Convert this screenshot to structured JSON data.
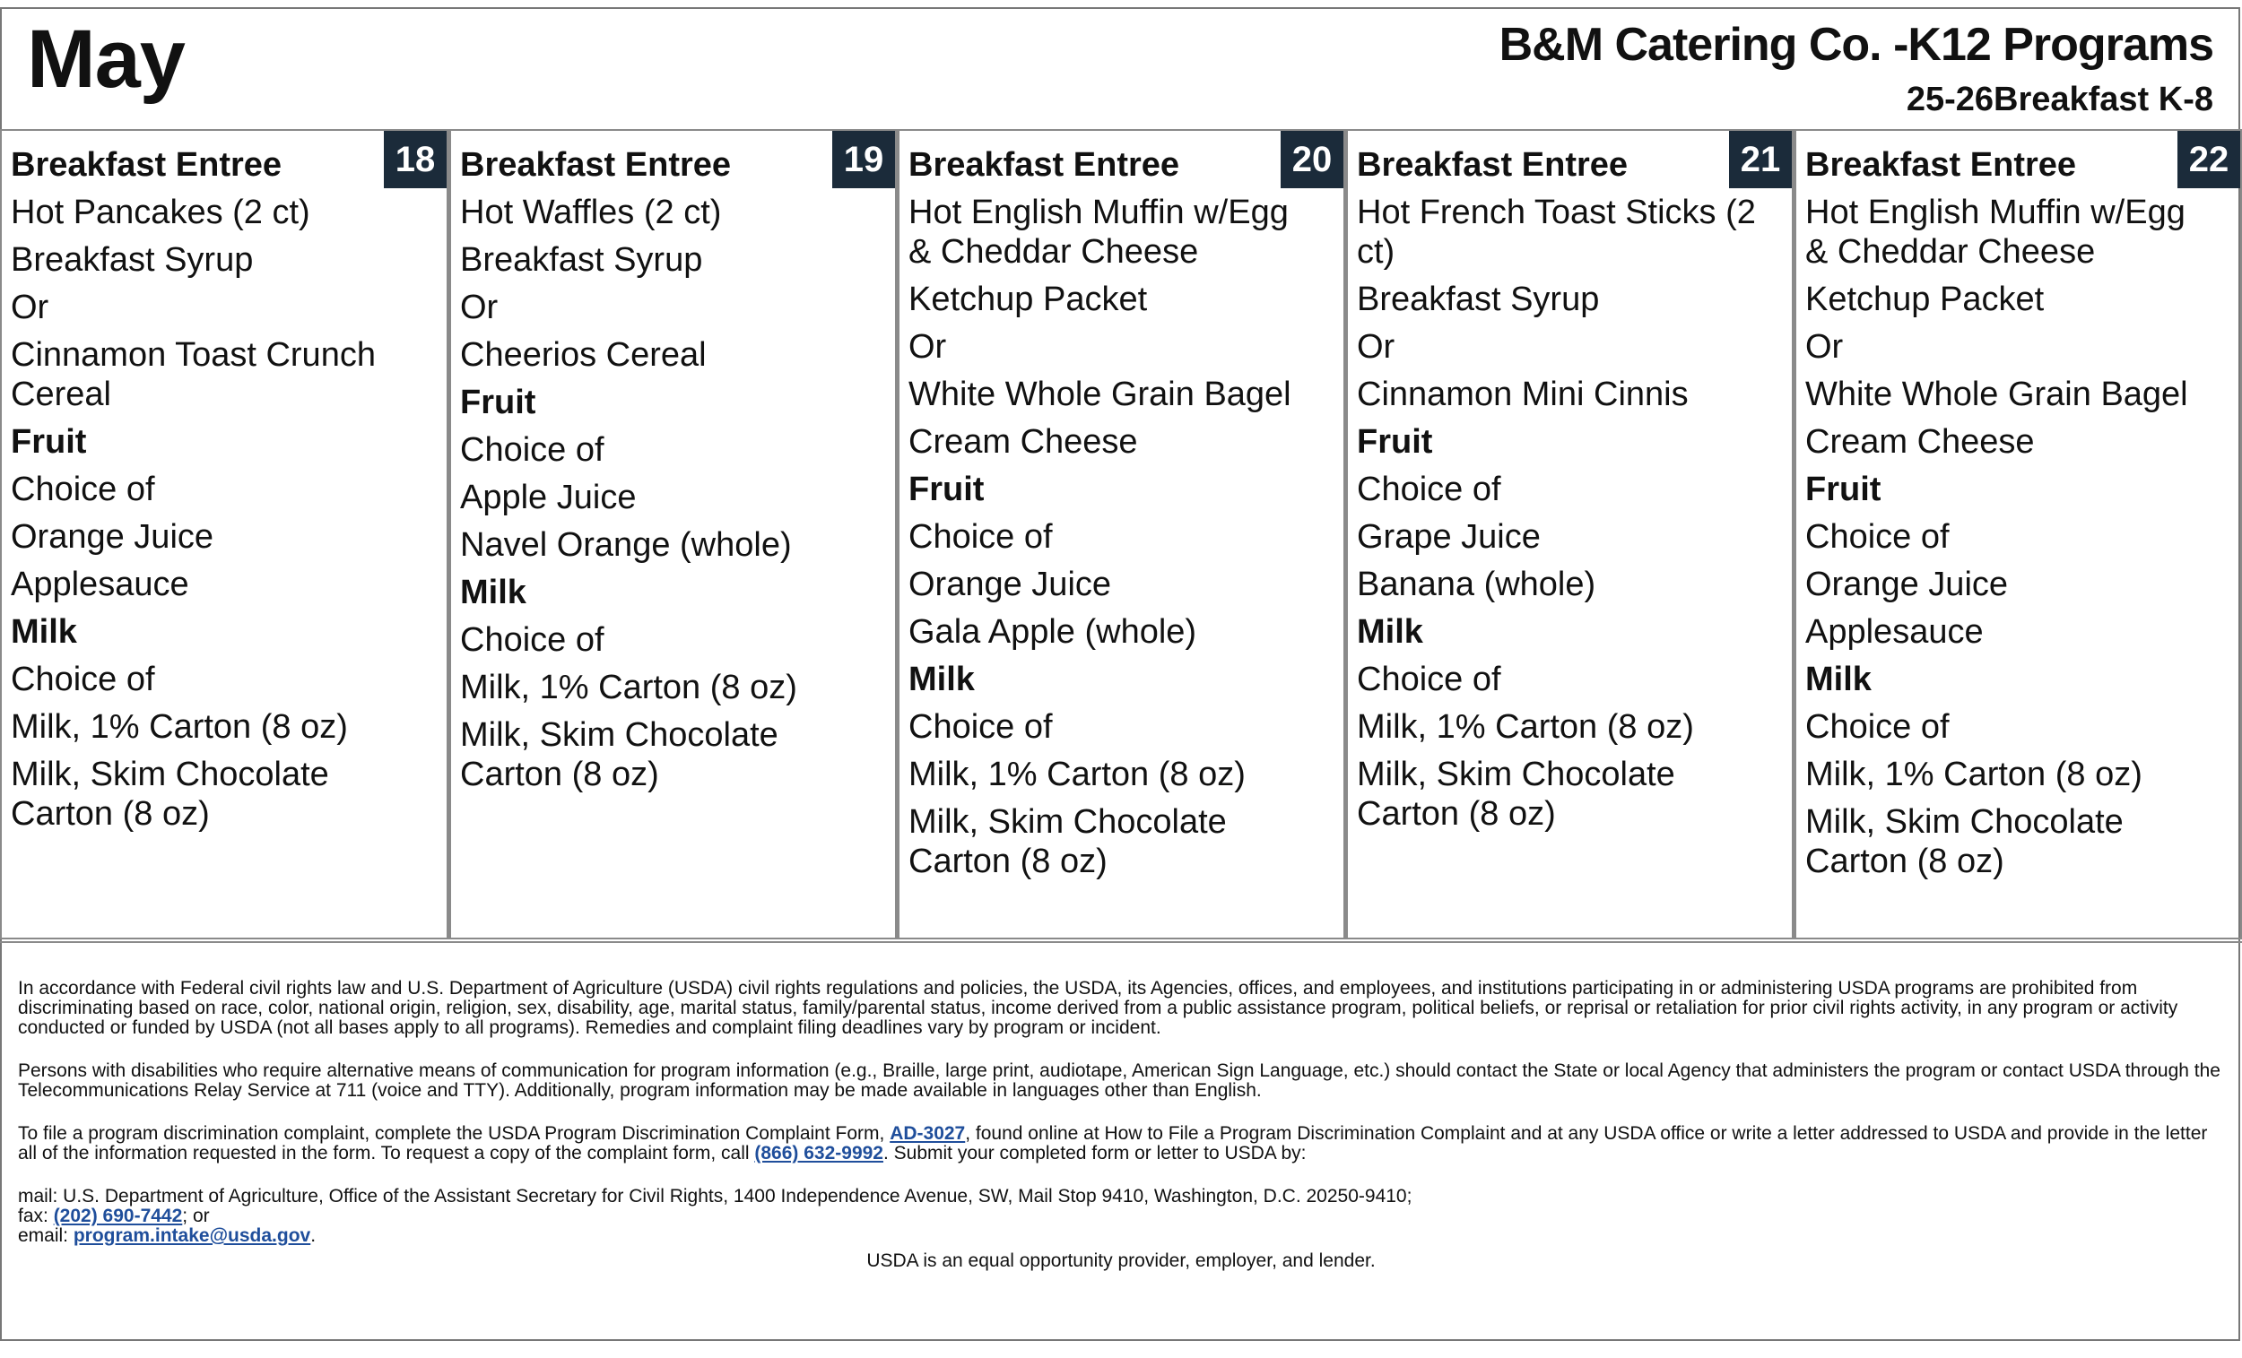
{
  "header": {
    "month": "May",
    "company": "B&M Catering Co. -K12 Programs",
    "subtitle": "25-26Breakfast K-8"
  },
  "days": [
    {
      "date": "18",
      "items": [
        {
          "text": "Breakfast Entree",
          "heading": true
        },
        {
          "text": "Hot Pancakes (2 ct)",
          "heading": false
        },
        {
          "text": "Breakfast Syrup",
          "heading": false
        },
        {
          "text": "Or",
          "heading": false
        },
        {
          "text": "Cinnamon Toast Crunch Cereal",
          "heading": false
        },
        {
          "text": "Fruit",
          "heading": true
        },
        {
          "text": "Choice of",
          "heading": false
        },
        {
          "text": "Orange Juice",
          "heading": false
        },
        {
          "text": "Applesauce",
          "heading": false
        },
        {
          "text": "Milk",
          "heading": true
        },
        {
          "text": "Choice of",
          "heading": false
        },
        {
          "text": "Milk, 1% Carton (8 oz)",
          "heading": false
        },
        {
          "text": "Milk, Skim Chocolate Carton (8 oz)",
          "heading": false
        }
      ]
    },
    {
      "date": "19",
      "items": [
        {
          "text": "Breakfast Entree",
          "heading": true
        },
        {
          "text": "Hot Waffles (2 ct)",
          "heading": false
        },
        {
          "text": "Breakfast Syrup",
          "heading": false
        },
        {
          "text": "Or",
          "heading": false
        },
        {
          "text": "Cheerios Cereal",
          "heading": false
        },
        {
          "text": "Fruit",
          "heading": true
        },
        {
          "text": "Choice of",
          "heading": false
        },
        {
          "text": "Apple Juice",
          "heading": false
        },
        {
          "text": "Navel Orange (whole)",
          "heading": false
        },
        {
          "text": "Milk",
          "heading": true
        },
        {
          "text": "Choice of",
          "heading": false
        },
        {
          "text": "Milk, 1% Carton (8 oz)",
          "heading": false
        },
        {
          "text": "Milk, Skim Chocolate Carton (8 oz)",
          "heading": false
        }
      ]
    },
    {
      "date": "20",
      "items": [
        {
          "text": "Breakfast Entree",
          "heading": true
        },
        {
          "text": "Hot English Muffin w/Egg & Cheddar Cheese",
          "heading": false
        },
        {
          "text": "Ketchup Packet",
          "heading": false
        },
        {
          "text": "Or",
          "heading": false
        },
        {
          "text": "White Whole Grain Bagel",
          "heading": false
        },
        {
          "text": "Cream Cheese",
          "heading": false
        },
        {
          "text": "Fruit",
          "heading": true
        },
        {
          "text": "Choice of",
          "heading": false
        },
        {
          "text": "Orange Juice",
          "heading": false
        },
        {
          "text": "Gala Apple (whole)",
          "heading": false
        },
        {
          "text": "Milk",
          "heading": true
        },
        {
          "text": "Choice of",
          "heading": false
        },
        {
          "text": "Milk, 1% Carton (8 oz)",
          "heading": false
        },
        {
          "text": "Milk, Skim Chocolate Carton (8 oz)",
          "heading": false
        }
      ]
    },
    {
      "date": "21",
      "items": [
        {
          "text": "Breakfast Entree",
          "heading": true
        },
        {
          "text": "Hot French Toast Sticks (2 ct)",
          "heading": false
        },
        {
          "text": "Breakfast Syrup",
          "heading": false
        },
        {
          "text": "Or",
          "heading": false
        },
        {
          "text": "Cinnamon Mini Cinnis",
          "heading": false
        },
        {
          "text": "Fruit",
          "heading": true
        },
        {
          "text": "Choice of",
          "heading": false
        },
        {
          "text": "Grape Juice",
          "heading": false
        },
        {
          "text": "Banana (whole)",
          "heading": false
        },
        {
          "text": "Milk",
          "heading": true
        },
        {
          "text": "Choice of",
          "heading": false
        },
        {
          "text": "Milk, 1% Carton (8 oz)",
          "heading": false
        },
        {
          "text": "Milk, Skim Chocolate Carton (8 oz)",
          "heading": false
        }
      ]
    },
    {
      "date": "22",
      "items": [
        {
          "text": "Breakfast Entree",
          "heading": true
        },
        {
          "text": "Hot English Muffin w/Egg & Cheddar Cheese",
          "heading": false
        },
        {
          "text": "Ketchup Packet",
          "heading": false
        },
        {
          "text": "Or",
          "heading": false
        },
        {
          "text": "White Whole Grain Bagel",
          "heading": false
        },
        {
          "text": "Cream Cheese",
          "heading": false
        },
        {
          "text": "Fruit",
          "heading": true
        },
        {
          "text": "Choice of",
          "heading": false
        },
        {
          "text": "Orange Juice",
          "heading": false
        },
        {
          "text": "Applesauce",
          "heading": false
        },
        {
          "text": "Milk",
          "heading": true
        },
        {
          "text": "Choice of",
          "heading": false
        },
        {
          "text": "Milk, 1% Carton (8 oz)",
          "heading": false
        },
        {
          "text": "Milk, Skim Chocolate Carton (8 oz)",
          "heading": false
        }
      ]
    }
  ],
  "footer": {
    "para1": "In accordance with Federal civil rights law and U.S. Department of Agriculture (USDA) civil rights regulations and policies, the USDA, its Agencies, offices, and employees, and institutions participating in or administering USDA programs are prohibited from discriminating based on race, color, national origin, religion, sex, disability, age, marital status, family/parental status, income derived from a public assistance program, political beliefs, or reprisal or retaliation for prior civil rights activity, in any program or activity conducted or funded by USDA (not all bases apply to all programs). Remedies and complaint filing deadlines vary by program or incident.",
    "para2": "Persons with disabilities who require alternative means of communication for program information (e.g., Braille, large print, audiotape, American Sign Language, etc.) should contact the State or local Agency that administers the program or contact USDA through the Telecommunications Relay Service at 711 (voice and TTY). Additionally, program information may be made available in languages other than English.",
    "para3_before": "To file a program discrimination complaint, complete the USDA Program Discrimination Complaint Form, ",
    "para3_form_link": "AD-3027",
    "para3_middle": ", found online at How to File a Program Discrimination Complaint and at any USDA office or write a letter addressed to USDA and provide in the letter all of the information requested in the form. To request a copy of the complaint form, call ",
    "para3_phone_link": "(866) 632-9992",
    "para3_after": ". Submit your completed form or letter to USDA by:",
    "mail": "mail: U.S. Department of Agriculture, Office of the Assistant Secretary for Civil Rights, 1400 Independence Avenue, SW, Mail Stop 9410, Washington, D.C. 20250-9410;",
    "fax_label": "fax: ",
    "fax_link": "(202) 690-7442",
    "fax_after": "; or",
    "email_label": "email: ",
    "email_link": "program.intake@usda.gov",
    "email_after": ".",
    "equal_opportunity": "USDA is an equal opportunity provider, employer, and lender."
  }
}
